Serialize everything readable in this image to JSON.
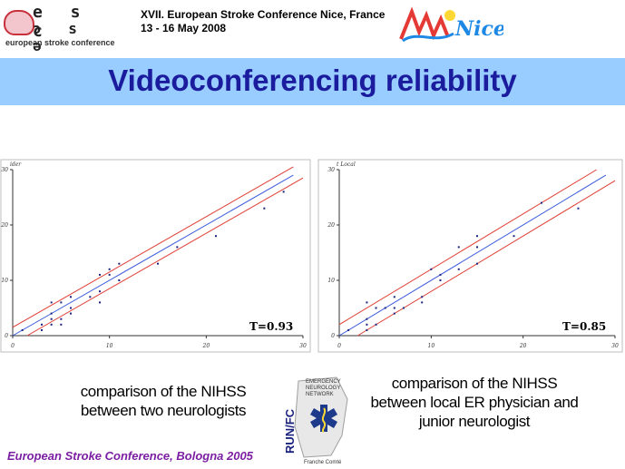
{
  "header": {
    "esc_logo_letters_top": "e s c",
    "esc_logo_letters_bottom": "ɔ s ə",
    "esc_logo_name": "european stroke conference",
    "conference_line1": "XVII. European  Stroke Conference  Nice, France",
    "conference_line2": "13 - 16 May 2008",
    "nice_logo_text": "Nice"
  },
  "slide_title": "Videoconferencing reliability",
  "colors": {
    "title_band": "#99ccff",
    "title_text": "#1b1b9e",
    "identity_line": "#3b5bdb",
    "limit_lines": "#e03c31",
    "points": "#1a237e",
    "footer": "#7b1fa2"
  },
  "chart_data": [
    {
      "type": "scatter",
      "ylabel": "ider",
      "xlim": [
        0,
        30
      ],
      "ylim": [
        0,
        30
      ],
      "xticks": [
        "0",
        "10",
        "20",
        "30"
      ],
      "yticks": [
        "0",
        "10",
        "20",
        "30"
      ],
      "annotation": "T=0.93",
      "points": [
        [
          1,
          1
        ],
        [
          3,
          1
        ],
        [
          3,
          2
        ],
        [
          4,
          2
        ],
        [
          4,
          3
        ],
        [
          4,
          4
        ],
        [
          4,
          6
        ],
        [
          5,
          2
        ],
        [
          5,
          3
        ],
        [
          5,
          6
        ],
        [
          6,
          4
        ],
        [
          6,
          5
        ],
        [
          6,
          7
        ],
        [
          8,
          7
        ],
        [
          9,
          6
        ],
        [
          9,
          8
        ],
        [
          9,
          11
        ],
        [
          10,
          11
        ],
        [
          10,
          12
        ],
        [
          11,
          10
        ],
        [
          11,
          13
        ],
        [
          15,
          13
        ],
        [
          17,
          16
        ],
        [
          21,
          18
        ],
        [
          26,
          23
        ],
        [
          28,
          26
        ]
      ],
      "lines": [
        {
          "role": "identity",
          "from": [
            0,
            0
          ],
          "to": [
            29,
            29
          ]
        },
        {
          "role": "upper",
          "from": [
            0,
            1.5
          ],
          "to": [
            29,
            30.5
          ]
        },
        {
          "role": "lower",
          "from": [
            1.5,
            0
          ],
          "to": [
            30,
            28.5
          ]
        }
      ]
    },
    {
      "type": "scatter",
      "ylabel": "t Local",
      "xlim": [
        0,
        30
      ],
      "ylim": [
        0,
        30
      ],
      "xticks": [
        "0",
        "10",
        "20",
        "30"
      ],
      "yticks": [
        "0",
        "10",
        "20",
        "30"
      ],
      "annotation": "T=0.85",
      "points": [
        [
          1,
          1
        ],
        [
          3,
          1
        ],
        [
          3,
          2
        ],
        [
          3,
          3
        ],
        [
          3,
          6
        ],
        [
          4,
          2
        ],
        [
          4,
          5
        ],
        [
          5,
          5
        ],
        [
          6,
          4
        ],
        [
          6,
          5
        ],
        [
          6,
          7
        ],
        [
          7,
          5
        ],
        [
          9,
          6
        ],
        [
          9,
          7
        ],
        [
          10,
          12
        ],
        [
          11,
          10
        ],
        [
          11,
          11
        ],
        [
          13,
          12
        ],
        [
          13,
          16
        ],
        [
          15,
          13
        ],
        [
          15,
          16
        ],
        [
          15,
          18
        ],
        [
          19,
          18
        ],
        [
          22,
          24
        ],
        [
          26,
          23
        ]
      ],
      "lines": [
        {
          "role": "identity",
          "from": [
            0,
            0
          ],
          "to": [
            29,
            29
          ]
        },
        {
          "role": "upper",
          "from": [
            0,
            2
          ],
          "to": [
            28,
            30
          ]
        },
        {
          "role": "lower",
          "from": [
            2,
            0
          ],
          "to": [
            30,
            28
          ]
        }
      ]
    }
  ],
  "captions": {
    "left_line1": "comparison of the NIHSS",
    "left_line2": "between two neurologists",
    "right_line1": "comparison of the NIHSS",
    "right_line2": "between local ER physician and",
    "right_line3": "junior neurologist"
  },
  "run_logo": {
    "vertical_text": "RUN/FC",
    "line1": "EMERGENCY",
    "line2": "NEUROLOGY",
    "line3": "NETWORK",
    "bottom": "Franche Comté"
  },
  "footer": "European Stroke Conference, Bologna 2005"
}
